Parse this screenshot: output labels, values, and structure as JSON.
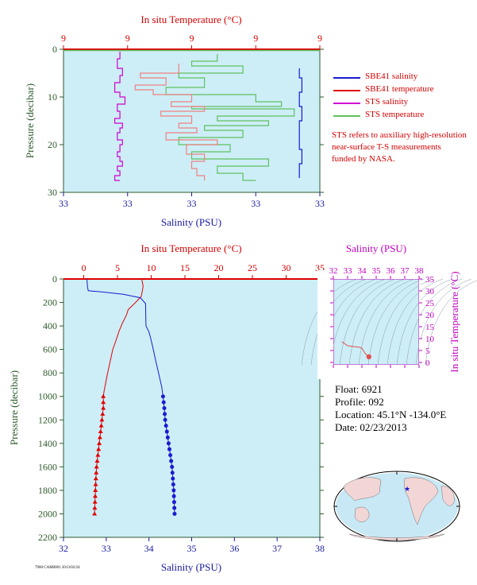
{
  "top_chart": {
    "title": "In situ Temperature (°C)",
    "xlabel": "Salinity (PSU)",
    "ylabel": "Pressure (decibar)",
    "temp_ticks": [
      "9",
      "9",
      "9",
      "9",
      "9"
    ],
    "sal_ticks": [
      "33",
      "33",
      "33",
      "33",
      "33"
    ],
    "pressure_ticks": [
      "0",
      "10",
      "20",
      "30"
    ]
  },
  "legend": {
    "items": [
      {
        "label": "SBE41 salinity",
        "color": "#1a1ad0"
      },
      {
        "label": "SBE41 temperature",
        "color": "#e00000"
      },
      {
        "label": "STS salinity",
        "color": "#d000d0"
      },
      {
        "label": "STS temperature",
        "color": "#60c060"
      }
    ],
    "note": "STS refers to auxiliary high-resolution near-surface T-S measurements funded by NASA."
  },
  "bottom_chart": {
    "title": "In situ Temperature (°C)",
    "xlabel": "Salinity (PSU)",
    "ylabel": "Pressure (decibar)",
    "temp_ticks": [
      "0",
      "5",
      "10",
      "15",
      "20",
      "25",
      "30",
      "35"
    ],
    "sal_ticks": [
      "32",
      "33",
      "34",
      "35",
      "36",
      "37",
      "38"
    ],
    "pressure_ticks": [
      "0",
      "200",
      "400",
      "600",
      "800",
      "1000",
      "1200",
      "1400",
      "1600",
      "1800",
      "2000",
      "2200"
    ]
  },
  "ts_chart": {
    "xlabel": "Salinity (PSU)",
    "ylabel": "In situ Temperature (°C)",
    "sal_ticks": [
      "32",
      "33",
      "34",
      "35",
      "36",
      "37",
      "38"
    ],
    "temp_ticks": [
      "0",
      "5",
      "10",
      "15",
      "20",
      "25",
      "30",
      "35"
    ]
  },
  "float_info": {
    "float": "Float:  6921",
    "profile": "Profile:  092",
    "location": "Location:  45.1°N  -134.0°E",
    "date": "Date:  02/23/2013"
  },
  "footer": "7900 CAM0001 2013/02/24",
  "colors": {
    "plot_bg": "#cdeef7",
    "temperature": "#e00000",
    "salinity": "#1a1ad0",
    "sts_salinity": "#d000d0",
    "sts_temperature": "#60c060",
    "pressure_axis": "#2c5a2c"
  },
  "chart_data": [
    {
      "type": "line",
      "name": "top",
      "ylim": [
        30,
        0
      ],
      "series": [
        {
          "name": "STS salinity",
          "x_frac": [
            0.22,
            0.21,
            0.23,
            0.22,
            0.2,
            0.22,
            0.24,
            0.21,
            0.22,
            0.2,
            0.23,
            0.22,
            0.21,
            0.23,
            0.22,
            0.21,
            0.22,
            0.23,
            0.21,
            0.22,
            0.2,
            0.22
          ],
          "pressure": [
            0.5,
            2,
            4,
            5.5,
            7,
            9,
            10,
            11.5,
            13,
            14.5,
            15.5,
            16.5,
            17.5,
            19,
            20,
            21.5,
            22.5,
            23.5,
            24.5,
            25.5,
            26.5,
            27.5
          ]
        },
        {
          "name": "SBE41 salinity",
          "x_frac": [
            0.92,
            0.93,
            0.92,
            0.93,
            0.92,
            0.92,
            0.93,
            0.92,
            0.92
          ],
          "pressure": [
            4,
            6,
            9,
            12,
            15,
            18,
            21,
            24,
            27
          ]
        },
        {
          "name": "STS temperature",
          "x_frac": [
            0.6,
            0.5,
            0.7,
            0.45,
            0.55,
            0.4,
            0.75,
            0.85,
            0.5,
            0.9,
            0.6,
            0.8,
            0.55,
            0.7,
            0.45,
            0.65,
            0.5,
            0.8,
            0.6,
            0.7,
            0.75
          ],
          "pressure": [
            1,
            2.5,
            3.5,
            5,
            6,
            8,
            9.5,
            11,
            12,
            12.5,
            14,
            15,
            16,
            17,
            18.5,
            20,
            21.5,
            23,
            24.5,
            26,
            27.5
          ]
        },
        {
          "name": "SBE41 temperature",
          "x_frac": [
            0.45,
            0.3,
            0.4,
            0.28,
            0.35,
            0.5,
            0.42,
            0.55,
            0.38,
            0.5,
            0.45,
            0.52,
            0.4,
            0.6,
            0.48,
            0.55,
            0.5,
            0.52,
            0.55,
            0.55
          ],
          "pressure": [
            3,
            5,
            6,
            7.5,
            8.5,
            9.5,
            11,
            12,
            13,
            14,
            15.5,
            16.5,
            17.5,
            19,
            20,
            22,
            23.5,
            25,
            26.5,
            27.5
          ]
        }
      ]
    },
    {
      "type": "line",
      "name": "bottom",
      "xlim_salinity": [
        32,
        38
      ],
      "xlim_temperature": [
        -3,
        35
      ],
      "ylim": [
        2200,
        0
      ],
      "series": [
        {
          "name": "temperature",
          "x": [
            8.6,
            8.8,
            8.7,
            8.5,
            7.5,
            6.6,
            6.3,
            5.7,
            5.2,
            4.8,
            4.3,
            4.0,
            3.7,
            3.4,
            3.2,
            3.0,
            2.9,
            2.9,
            2.7,
            2.5,
            2.3,
            2.1,
            1.9,
            1.8,
            1.6
          ],
          "y": [
            0,
            60,
            100,
            150,
            210,
            260,
            310,
            380,
            450,
            520,
            600,
            680,
            760,
            840,
            900,
            960,
            1000,
            1100,
            1200,
            1300,
            1400,
            1500,
            1600,
            1700,
            2000
          ]
        },
        {
          "name": "salinity",
          "x": [
            32.55,
            32.56,
            32.58,
            32.9,
            33.4,
            33.8,
            33.92,
            33.93,
            34.0,
            34.05,
            34.1,
            34.15,
            34.2,
            34.25,
            34.3,
            34.33,
            34.36,
            34.38,
            34.42,
            34.46,
            34.5,
            34.54,
            34.58,
            34.6
          ],
          "y": [
            0,
            60,
            100,
            110,
            130,
            160,
            210,
            400,
            450,
            520,
            600,
            680,
            760,
            840,
            920,
            1000,
            1100,
            1200,
            1300,
            1400,
            1500,
            1600,
            1800,
            2000
          ]
        }
      ],
      "marker_pressures": [
        1000,
        1050,
        1100,
        1150,
        1200,
        1250,
        1300,
        1350,
        1400,
        1450,
        1500,
        1550,
        1600,
        1650,
        1700,
        1750,
        1800,
        1850,
        1900,
        1950,
        2000
      ]
    },
    {
      "type": "line",
      "name": "ts",
      "xlim": [
        32,
        38
      ],
      "ylim": [
        -1,
        35
      ],
      "series": [
        {
          "name": "profile",
          "x": [
            32.6,
            32.62,
            33.0,
            33.5,
            33.8,
            34.0,
            34.1,
            34.15,
            34.2,
            34.3,
            34.5,
            34.6
          ],
          "y": [
            8.7,
            8.6,
            7.0,
            6.6,
            6.4,
            6.0,
            5.0,
            4.5,
            4.0,
            3.3,
            2.5,
            1.7
          ]
        }
      ]
    }
  ]
}
